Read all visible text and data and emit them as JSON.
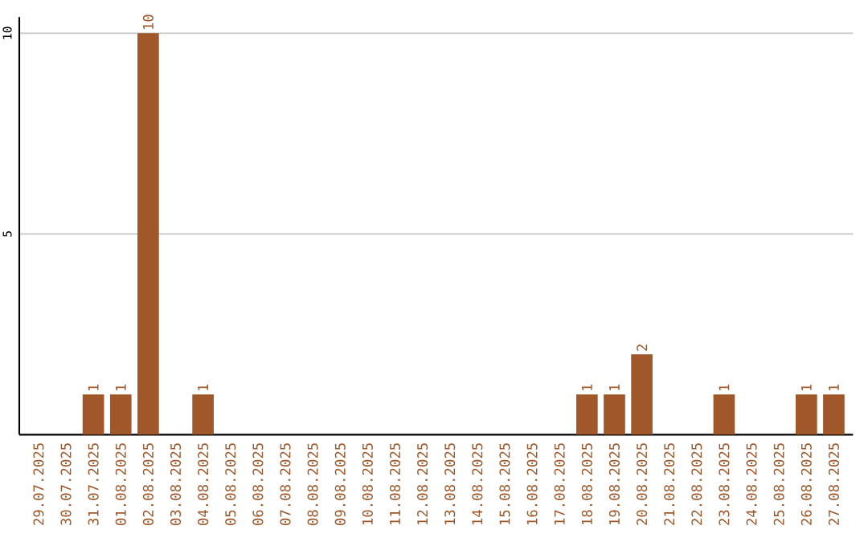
{
  "chart_data": {
    "type": "bar",
    "categories": [
      "29.07.2025",
      "30.07.2025",
      "31.07.2025",
      "01.08.2025",
      "02.08.2025",
      "03.08.2025",
      "04.08.2025",
      "05.08.2025",
      "06.08.2025",
      "07.08.2025",
      "08.08.2025",
      "09.08.2025",
      "10.08.2025",
      "11.08.2025",
      "12.08.2025",
      "13.08.2025",
      "14.08.2025",
      "15.08.2025",
      "16.08.2025",
      "17.08.2025",
      "18.08.2025",
      "19.08.2025",
      "20.08.2025",
      "21.08.2025",
      "22.08.2025",
      "23.08.2025",
      "24.08.2025",
      "25.08.2025",
      "26.08.2025",
      "27.08.2025"
    ],
    "values": [
      0,
      0,
      1,
      1,
      10,
      0,
      1,
      0,
      0,
      0,
      0,
      0,
      0,
      0,
      0,
      0,
      0,
      0,
      0,
      0,
      1,
      1,
      2,
      0,
      0,
      1,
      0,
      0,
      1,
      1
    ],
    "value_labels": [
      null,
      null,
      "1",
      "1",
      "10",
      null,
      "1",
      null,
      null,
      null,
      null,
      null,
      null,
      null,
      null,
      null,
      null,
      null,
      null,
      null,
      "1",
      "1",
      "2",
      null,
      null,
      "1",
      null,
      null,
      "1",
      "1"
    ],
    "color": "#a0582a",
    "ylim": [
      0,
      10.4
    ],
    "yticks": [
      5,
      10
    ],
    "grid": "y"
  }
}
